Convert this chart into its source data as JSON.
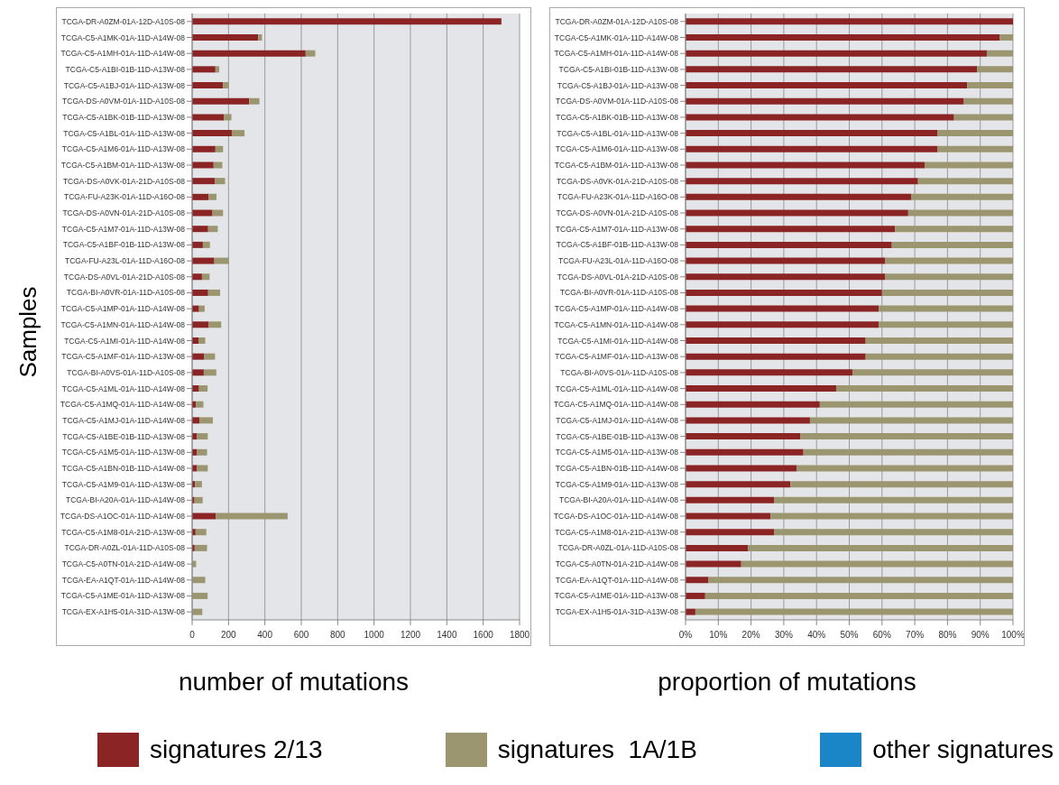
{
  "chart_data": [
    {
      "type": "bar",
      "orientation": "horizontal",
      "stacked": true,
      "ylabel": "Samples",
      "xlabel": "number of mutations",
      "grid": "x",
      "legend": "bottom",
      "categories": [
        "TCGA-DR-A0ZM-01A-12D-A10S-08",
        "TCGA-C5-A1MK-01A-11D-A14W-08",
        "TCGA-C5-A1MH-01A-11D-A14W-08",
        "TCGA-C5-A1BI-01B-11D-A13W-08",
        "TCGA-C5-A1BJ-01A-11D-A13W-08",
        "TCGA-DS-A0VM-01A-11D-A10S-08",
        "TCGA-C5-A1BK-01B-11D-A13W-08",
        "TCGA-C5-A1BL-01A-11D-A13W-08",
        "TCGA-C5-A1M6-01A-11D-A13W-08",
        "TCGA-C5-A1BM-01A-11D-A13W-08",
        "TCGA-DS-A0VK-01A-21D-A10S-08",
        "TCGA-FU-A23K-01A-11D-A16O-08",
        "TCGA-DS-A0VN-01A-21D-A10S-08",
        "TCGA-C5-A1M7-01A-11D-A13W-08",
        "TCGA-C5-A1BF-01B-11D-A13W-08",
        "TCGA-FU-A23L-01A-11D-A16O-08",
        "TCGA-DS-A0VL-01A-21D-A10S-08",
        "TCGA-BI-A0VR-01A-11D-A10S-08",
        "TCGA-C5-A1MP-01A-11D-A14W-08",
        "TCGA-C5-A1MN-01A-11D-A14W-08",
        "TCGA-C5-A1MI-01A-11D-A14W-08",
        "TCGA-C5-A1MF-01A-11D-A13W-08",
        "TCGA-BI-A0VS-01A-11D-A10S-08",
        "TCGA-C5-A1ML-01A-11D-A14W-08",
        "TCGA-C5-A1MQ-01A-11D-A14W-08",
        "TCGA-C5-A1MJ-01A-11D-A14W-08",
        "TCGA-C5-A1BE-01B-11D-A13W-08",
        "TCGA-C5-A1M5-01A-11D-A13W-08",
        "TCGA-C5-A1BN-01B-11D-A14W-08",
        "TCGA-C5-A1M9-01A-11D-A13W-08",
        "TCGA-BI-A20A-01A-11D-A14W-08",
        "TCGA-DS-A1OC-01A-11D-A14W-08",
        "TCGA-C5-A1M8-01A-21D-A13W-08",
        "TCGA-DR-A0ZL-01A-11D-A10S-08",
        "TCGA-C5-A0TN-01A-21D-A14W-08",
        "TCGA-EA-A1QT-01A-11D-A14W-08",
        "TCGA-C5-A1ME-01A-11D-A13W-08",
        "TCGA-EX-A1H5-01A-31D-A13W-08"
      ],
      "xlim": [
        0,
        1800
      ],
      "xticks": [
        0,
        200,
        400,
        600,
        800,
        1000,
        1200,
        1400,
        1600,
        1800
      ],
      "series": [
        {
          "name": "signatures 2/13",
          "color": "#8b2525",
          "values": [
            1700,
            363,
            624,
            128,
            170,
            314,
            174,
            218,
            128,
            118,
            126,
            91,
            112,
            88,
            59,
            122,
            54,
            88,
            38,
            91,
            35,
            67,
            64,
            38,
            21,
            40,
            27,
            27,
            27,
            16,
            13,
            131,
            19,
            14,
            null,
            null,
            null,
            null
          ]
        },
        {
          "name": "signatures  1A/1B",
          "color": "#9c9670",
          "values": [
            0,
            21,
            53,
            21,
            32,
            56,
            42,
            70,
            42,
            48,
            55,
            43,
            58,
            53,
            39,
            80,
            42,
            66,
            31,
            69,
            37,
            59,
            69,
            47,
            41,
            74,
            59,
            55,
            59,
            38,
            45,
            394,
            59,
            68,
            22,
            72,
            85,
            56
          ]
        },
        {
          "name": "other signatures",
          "color": "#1a86c8",
          "values": [
            0,
            0,
            0,
            0,
            0,
            0,
            0,
            0,
            0,
            0,
            0,
            0,
            0,
            0,
            0,
            0,
            0,
            0,
            0,
            0,
            0,
            0,
            0,
            0,
            0,
            0,
            0,
            0,
            0,
            0,
            0,
            0,
            0,
            0,
            0,
            0,
            0,
            0
          ]
        }
      ]
    },
    {
      "type": "bar",
      "orientation": "horizontal",
      "stacked": true,
      "xlabel": "proportion of mutations",
      "grid": "x",
      "categories": [
        "TCGA-DR-A0ZM-01A-12D-A10S-08",
        "TCGA-C5-A1MK-01A-11D-A14W-08",
        "TCGA-C5-A1MH-01A-11D-A14W-08",
        "TCGA-C5-A1BI-01B-11D-A13W-08",
        "TCGA-C5-A1BJ-01A-11D-A13W-08",
        "TCGA-DS-A0VM-01A-11D-A10S-08",
        "TCGA-C5-A1BK-01B-11D-A13W-08",
        "TCGA-C5-A1BL-01A-11D-A13W-08",
        "TCGA-C5-A1M6-01A-11D-A13W-08",
        "TCGA-C5-A1BM-01A-11D-A13W-08",
        "TCGA-DS-A0VK-01A-21D-A10S-08",
        "TCGA-FU-A23K-01A-11D-A16O-08",
        "TCGA-DS-A0VN-01A-21D-A10S-08",
        "TCGA-C5-A1M7-01A-11D-A13W-08",
        "TCGA-C5-A1BF-01B-11D-A13W-08",
        "TCGA-FU-A23L-01A-11D-A16O-08",
        "TCGA-DS-A0VL-01A-21D-A10S-08",
        "TCGA-BI-A0VR-01A-11D-A10S-08",
        "TCGA-C5-A1MP-01A-11D-A14W-08",
        "TCGA-C5-A1MN-01A-11D-A14W-08",
        "TCGA-C5-A1MI-01A-11D-A14W-08",
        "TCGA-C5-A1MF-01A-11D-A13W-08",
        "TCGA-BI-A0VS-01A-11D-A10S-08",
        "TCGA-C5-A1ML-01A-11D-A14W-08",
        "TCGA-C5-A1MQ-01A-11D-A14W-08",
        "TCGA-C5-A1MJ-01A-11D-A14W-08",
        "TCGA-C5-A1BE-01B-11D-A13W-08",
        "TCGA-C5-A1M5-01A-11D-A13W-08",
        "TCGA-C5-A1BN-01B-11D-A14W-08",
        "TCGA-C5-A1M9-01A-11D-A13W-08",
        "TCGA-BI-A20A-01A-11D-A14W-08",
        "TCGA-DS-A1OC-01A-11D-A14W-08",
        "TCGA-C5-A1M8-01A-21D-A13W-08",
        "TCGA-DR-A0ZL-01A-11D-A10S-08",
        "TCGA-C5-A0TN-01A-21D-A14W-08",
        "TCGA-EA-A1QT-01A-11D-A14W-08",
        "TCGA-C5-A1ME-01A-11D-A13W-08",
        "TCGA-EX-A1H5-01A-31D-A13W-08"
      ],
      "xlim": [
        0,
        100
      ],
      "xticks": [
        {
          "value": 0,
          "label": "0%"
        },
        {
          "value": 10,
          "label": "10%"
        },
        {
          "value": 20,
          "label": "20%"
        },
        {
          "value": 30,
          "label": "30%"
        },
        {
          "value": 40,
          "label": "40%"
        },
        {
          "value": 50,
          "label": "50%"
        },
        {
          "value": 60,
          "label": "60%"
        },
        {
          "value": 70,
          "label": "70%"
        },
        {
          "value": 80,
          "label": "80%"
        },
        {
          "value": 90,
          "label": "90%"
        },
        {
          "value": 100,
          "label": "100%"
        }
      ],
      "series": [
        {
          "color": "#8b2525",
          "values": [
            100,
            96,
            92,
            89,
            86,
            85,
            82,
            77,
            77,
            73,
            71,
            69,
            68,
            64,
            63,
            61,
            61,
            60,
            59,
            59,
            55,
            55,
            51,
            46,
            41,
            38,
            35,
            36,
            34,
            32,
            27,
            26,
            27,
            19,
            17,
            7,
            6,
            3
          ]
        },
        {
          "color": "#9c9670",
          "values": [
            0,
            4,
            8,
            11,
            14,
            15,
            18,
            23,
            23,
            27,
            29,
            31,
            32,
            36,
            37,
            39,
            39,
            40,
            41,
            41,
            45,
            45,
            49,
            54,
            59,
            62,
            65,
            64,
            66,
            68,
            73,
            74,
            73,
            81,
            83,
            93,
            94,
            97
          ]
        }
      ]
    }
  ]
}
